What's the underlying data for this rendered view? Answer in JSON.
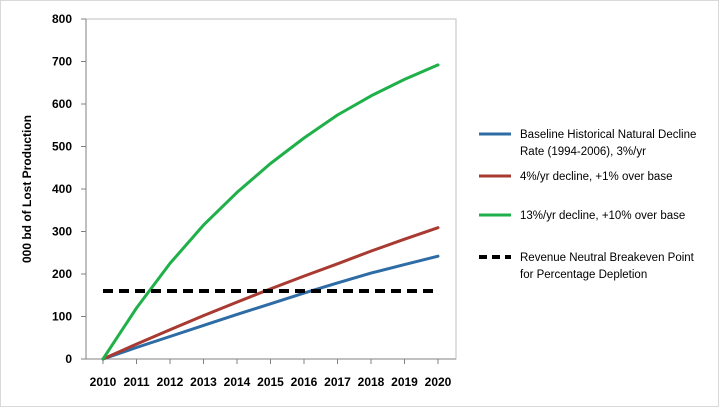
{
  "chart_data": {
    "type": "line",
    "title": "",
    "xlabel": "",
    "ylabel": "000 bd of Lost Production",
    "x": [
      2010,
      2011,
      2012,
      2013,
      2014,
      2015,
      2016,
      2017,
      2018,
      2019,
      2020
    ],
    "xlim": [
      2010,
      2020
    ],
    "ylim": [
      0,
      800
    ],
    "yticks": [
      "0",
      "100",
      "200",
      "300",
      "400",
      "500",
      "600",
      "700",
      "800"
    ],
    "xticks": [
      "2010",
      "2011",
      "2012",
      "2013",
      "2014",
      "2015",
      "2016",
      "2017",
      "2018",
      "2019",
      "2020"
    ],
    "grid": {
      "horizontal": false,
      "vertical": false
    },
    "legend_position": "right",
    "series": [
      {
        "name": "Baseline Historical Natural Decline Rate (1994-2006), 3%/yr",
        "color": "#2e6ca6",
        "style": "solid",
        "values": [
          0,
          27,
          53,
          79,
          105,
          130,
          155,
          179,
          202,
          222,
          242
        ]
      },
      {
        "name": "4%/yr decline, +1% over base",
        "color": "#a83a32",
        "style": "solid",
        "values": [
          0,
          35,
          69,
          102,
          134,
          165,
          195,
          224,
          254,
          282,
          309
        ]
      },
      {
        "name": "13%/yr decline, +10% over base",
        "color": "#1fb04a",
        "style": "solid",
        "values": [
          0,
          120,
          225,
          315,
          392,
          460,
          520,
          574,
          619,
          658,
          692
        ]
      },
      {
        "name": "Revenue Neutral Breakeven Point for Percentage Depletion",
        "color": "#000000",
        "style": "dashed",
        "values": [
          160,
          160,
          160,
          160,
          160,
          160,
          160,
          160,
          160,
          160,
          160
        ]
      }
    ]
  }
}
